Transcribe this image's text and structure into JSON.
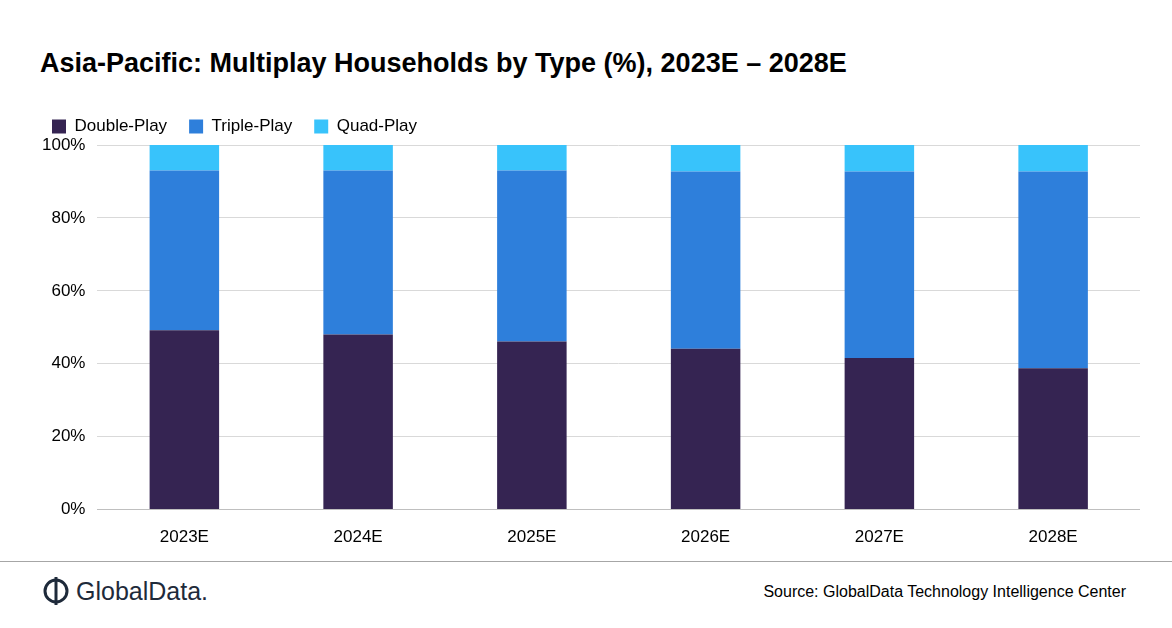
{
  "chart_data": {
    "type": "bar",
    "title": "Asia-Pacific:  Multiplay Households by Type (%), 2023E – 2028E",
    "categories": [
      "2023E",
      "2024E",
      "2025E",
      "2026E",
      "2027E",
      "2028E"
    ],
    "series": [
      {
        "name": "Double-Play",
        "color": "#352452",
        "values": [
          49.2,
          48.0,
          46.1,
          44.1,
          41.6,
          38.8
        ]
      },
      {
        "name": "Triple-Play",
        "color": "#2e7fdb",
        "values": [
          43.8,
          45.0,
          46.9,
          48.6,
          51.1,
          53.9
        ]
      },
      {
        "name": "Quad-Play",
        "color": "#38c3fb",
        "values": [
          7.0,
          7.0,
          7.0,
          7.3,
          7.3,
          7.3
        ]
      }
    ],
    "ylim": [
      0,
      100
    ],
    "yticks": [
      {
        "value": 0,
        "label": "0%"
      },
      {
        "value": 20,
        "label": "20%"
      },
      {
        "value": 40,
        "label": "40%"
      },
      {
        "value": 60,
        "label": "60%"
      },
      {
        "value": 80,
        "label": "80%"
      },
      {
        "value": 100,
        "label": "100%"
      }
    ],
    "stacked": true,
    "grid": true,
    "legend": "top-left",
    "data_labels": false,
    "source": "Source: GlobalData Technology Intelligence Center",
    "logo_text": "GlobalData."
  }
}
